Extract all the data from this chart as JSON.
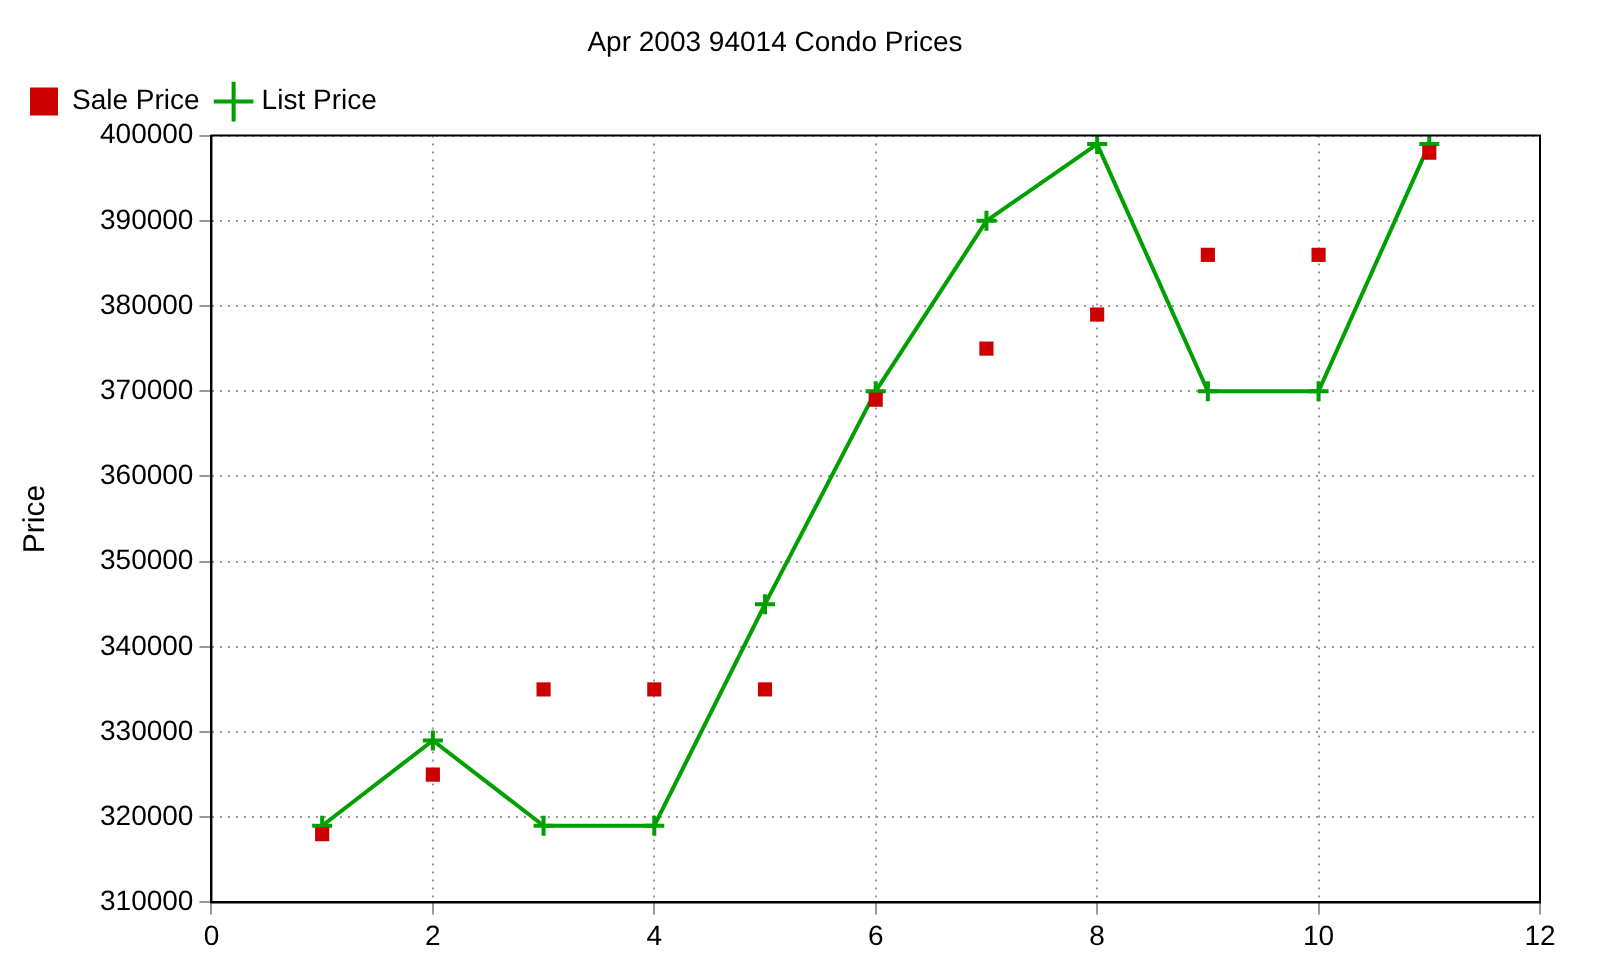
{
  "chart_data": {
    "type": "line",
    "title": "Apr 2003 94014 Condo Prices",
    "ylabel": "Price",
    "x": [
      1,
      2,
      3,
      4,
      5,
      6,
      7,
      8,
      9,
      10,
      11
    ],
    "series": [
      {
        "name": "List Price",
        "color": "#00a000",
        "marker": "cross",
        "line_style": "solid",
        "values": [
          319000,
          329000,
          319000,
          319000,
          345000,
          370000,
          390000,
          399000,
          370000,
          370000,
          399000
        ]
      },
      {
        "name": "Sale Price",
        "type": "scatter",
        "color": "#cc0000",
        "marker": "square",
        "values": [
          318000,
          325000,
          335000,
          335000,
          335000,
          369000,
          375000,
          379000,
          386000,
          386000,
          398000
        ]
      }
    ],
    "xlim": [
      0,
      12
    ],
    "xticks": [
      0,
      2,
      4,
      6,
      8,
      10,
      12
    ],
    "ylim": [
      310000,
      400000
    ],
    "yticks": [
      310000,
      320000,
      330000,
      340000,
      350000,
      360000,
      370000,
      380000,
      390000,
      400000
    ],
    "grid": true,
    "legend": "top left"
  }
}
